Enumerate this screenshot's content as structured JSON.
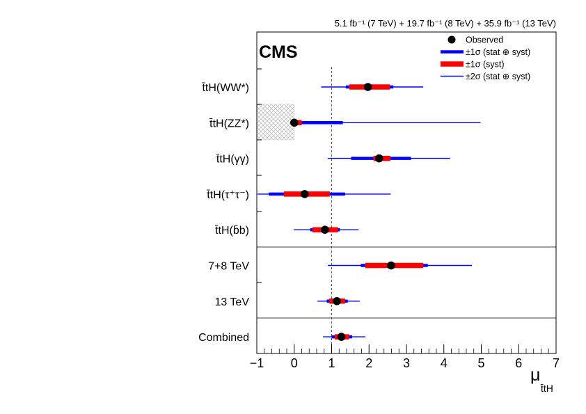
{
  "chart_data": {
    "type": "forest",
    "experiment_label": "CMS",
    "lumi_text": "5.1 fb⁻¹ (7 TeV) + 19.7 fb⁻¹ (8 TeV) + 35.9 fb⁻¹ (13 TeV)",
    "xlabel": "μ",
    "xlabel_sub": "t̄tH",
    "xlim": [
      -1,
      7
    ],
    "xticks": [
      "−1",
      "0",
      "1",
      "2",
      "3",
      "4",
      "5",
      "6",
      "7"
    ],
    "reference_line": 1,
    "hatched_region": [
      -1,
      0
    ],
    "legend": {
      "position": "top-right",
      "entries": [
        {
          "label": "Observed",
          "style": "marker"
        },
        {
          "label": "±1σ (stat ⊕ syst)",
          "style": "thick-blue"
        },
        {
          "label": "±1σ (syst)",
          "style": "thick-red"
        },
        {
          "label": "±2σ (stat ⊕ syst)",
          "style": "thin-blue"
        }
      ]
    },
    "colors": {
      "marker": "#000000",
      "tot1": "#0000ff",
      "syst": "#ff0000",
      "tot2": "#0000ff",
      "refline": "#555555"
    },
    "rows": [
      {
        "label": "t̄tH(WW*)",
        "value": 1.97,
        "tot1": [
          1.38,
          2.65
        ],
        "syst": [
          1.47,
          2.56
        ],
        "tot2": [
          0.72,
          3.45
        ],
        "group": 0
      },
      {
        "label": "t̄tH(ZZ*)",
        "value": 0.0,
        "tot1": [
          0.0,
          1.3
        ],
        "syst": [
          0.0,
          0.2
        ],
        "tot2": [
          0.0,
          4.98
        ],
        "group": 0
      },
      {
        "label": "t̄tH(γγ)",
        "value": 2.27,
        "tot1": [
          1.52,
          3.12
        ],
        "syst": [
          2.12,
          2.57
        ],
        "tot2": [
          0.9,
          4.17
        ],
        "group": 0
      },
      {
        "label": "t̄tH(τ⁺τ⁻)",
        "value": 0.28,
        "tot1": [
          -0.68,
          1.36
        ],
        "syst": [
          -0.28,
          0.95
        ],
        "tot2": [
          -0.98,
          2.58
        ],
        "group": 0
      },
      {
        "label": "t̄tH(b̄b)",
        "value": 0.82,
        "tot1": [
          0.43,
          1.22
        ],
        "syst": [
          0.49,
          1.17
        ],
        "tot2": [
          -0.01,
          1.72
        ],
        "group": 0
      },
      {
        "label": "7+8 TeV",
        "value": 2.59,
        "tot1": [
          1.78,
          3.57
        ],
        "syst": [
          1.9,
          3.45
        ],
        "tot2": [
          0.9,
          4.75
        ],
        "group": 1
      },
      {
        "label": "13 TeV",
        "value": 1.14,
        "tot1": [
          0.87,
          1.43
        ],
        "syst": [
          0.94,
          1.36
        ],
        "tot2": [
          0.62,
          1.75
        ],
        "group": 1
      },
      {
        "label": "Combined",
        "value": 1.26,
        "tot1": [
          1.0,
          1.55
        ],
        "syst": [
          1.08,
          1.47
        ],
        "tot2": [
          0.77,
          1.9
        ],
        "group": 2
      }
    ]
  }
}
